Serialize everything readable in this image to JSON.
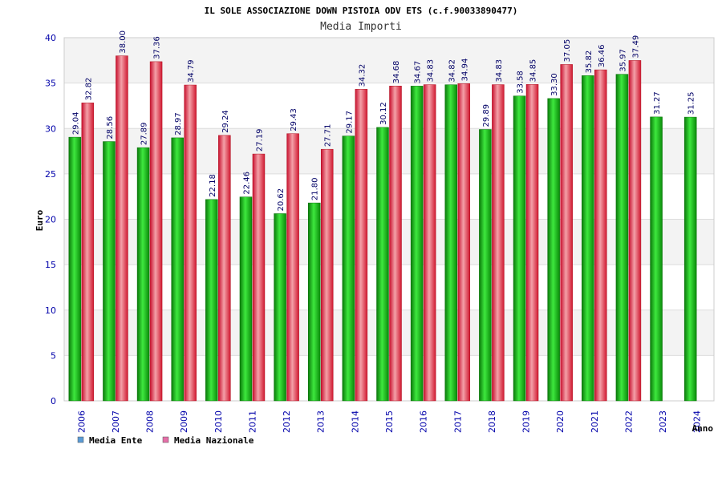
{
  "chart_data": {
    "type": "bar",
    "title": "IL SOLE ASSOCIAZIONE DOWN PISTOIA ODV ETS (c.f.90033890477)",
    "subtitle": "Media Importi",
    "ylabel": "Euro",
    "xlabel": "Anno",
    "ylim": [
      0,
      40
    ],
    "yticks": [
      0,
      5,
      10,
      15,
      20,
      25,
      30,
      35,
      40
    ],
    "grid": true,
    "legend_position": "bottom-left",
    "categories": [
      "2006",
      "2007",
      "2008",
      "2009",
      "2010",
      "2011",
      "2012",
      "2013",
      "2014",
      "2015",
      "2016",
      "2017",
      "2018",
      "2019",
      "2020",
      "2021",
      "2022",
      "2023",
      "2024"
    ],
    "series": [
      {
        "name": "Media Ente",
        "legend_color": "#5b9bd5",
        "color": "#1fb81f",
        "values": [
          29.04,
          28.56,
          27.89,
          28.97,
          22.18,
          22.46,
          20.62,
          21.8,
          29.17,
          30.12,
          34.67,
          34.82,
          29.89,
          33.58,
          33.3,
          35.82,
          35.97,
          31.27,
          31.25
        ],
        "labels": [
          "29.04",
          "28.56",
          "27.89",
          "28.97",
          "22.18",
          "22.46",
          "20.62",
          "21.80",
          "29.17",
          "30.12",
          "34.67",
          "34.82",
          "29.89",
          "33.58",
          "33.30",
          "35.82",
          "35.97",
          "31.27",
          "31.25"
        ]
      },
      {
        "name": "Media Nazionale",
        "legend_color": "#e56fa8",
        "color": "#e83040",
        "values": [
          32.82,
          38.0,
          37.36,
          34.79,
          29.24,
          27.19,
          29.43,
          27.71,
          34.32,
          34.68,
          34.83,
          34.94,
          34.83,
          34.85,
          37.05,
          36.46,
          37.49,
          null,
          null
        ],
        "labels": [
          "32.82",
          "38.00",
          "37.36",
          "34.79",
          "29.24",
          "27.19",
          "29.43",
          "27.71",
          "34.32",
          "34.68",
          "34.83",
          "34.94",
          "34.83",
          "34.85",
          "37.05",
          "36.46",
          "37.49",
          null,
          null
        ]
      }
    ]
  }
}
